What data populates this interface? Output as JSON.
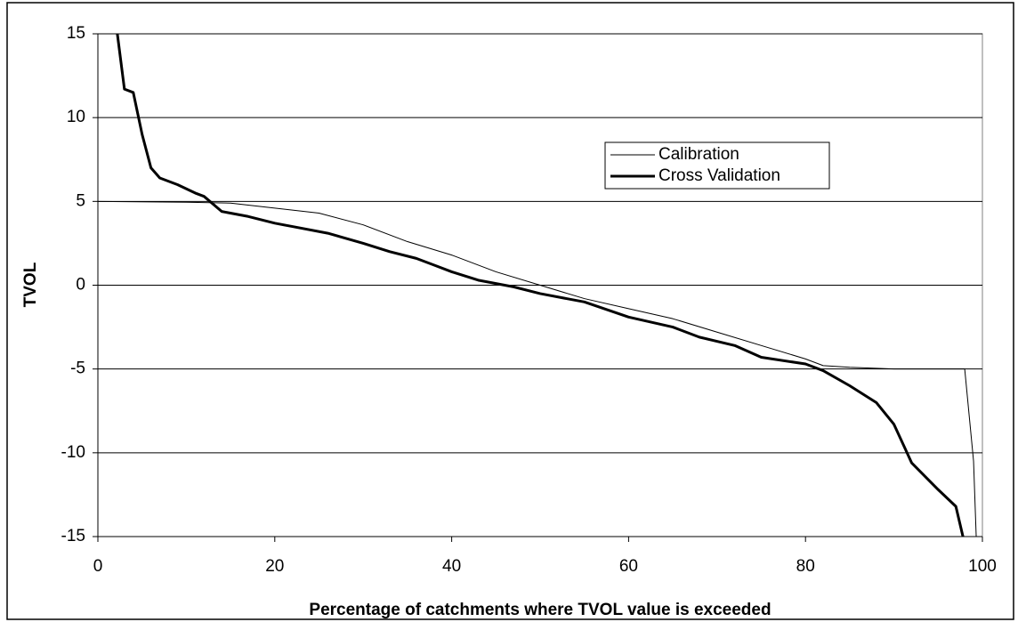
{
  "chart_data": {
    "type": "line",
    "x_label": "Percentage of catchments where TVOL value is exceeded",
    "y_label": "TVOL",
    "xlim": [
      0,
      100
    ],
    "xticks": [
      0,
      20,
      40,
      60,
      80,
      100
    ],
    "ylim": [
      -15,
      15
    ],
    "yticks": [
      -15,
      -10,
      -5,
      0,
      5,
      10,
      15
    ],
    "grid": true,
    "legend": "upper right",
    "series": [
      {
        "name": "Calibration",
        "color": "#000000",
        "line_width": 1,
        "x": [
          0,
          10,
          15,
          20,
          25,
          30,
          35,
          40,
          45,
          50,
          55,
          60,
          65,
          70,
          75,
          80,
          82,
          85,
          90,
          98,
          99,
          99.3
        ],
        "values": [
          5,
          4.95,
          4.9,
          4.6,
          4.3,
          3.6,
          2.6,
          1.8,
          0.8,
          0,
          -0.8,
          -1.4,
          -2,
          -2.8,
          -3.6,
          -4.4,
          -4.8,
          -4.9,
          -5,
          -5,
          -10.5,
          -15
        ]
      },
      {
        "name": "Cross Validation",
        "color": "#000000",
        "line_width": 3,
        "x": [
          2.2,
          3,
          4,
          5,
          6,
          7,
          9,
          11,
          12,
          14,
          17,
          20,
          22,
          26,
          30,
          33,
          36,
          38,
          40,
          43,
          47,
          50,
          55,
          60,
          65,
          68,
          72,
          75,
          80,
          82,
          85,
          88,
          90,
          92,
          95,
          97,
          97.8
        ],
        "values": [
          15,
          11.7,
          11.5,
          9,
          7,
          6.4,
          6,
          5.5,
          5.3,
          4.4,
          4.1,
          3.7,
          3.5,
          3.1,
          2.5,
          2,
          1.6,
          1.2,
          0.8,
          0.3,
          -0.1,
          -0.5,
          -1,
          -1.9,
          -2.5,
          -3.1,
          -3.6,
          -4.3,
          -4.7,
          -5.1,
          -6,
          -7,
          -8.3,
          -10.6,
          -12.2,
          -13.2,
          -15
        ]
      }
    ]
  }
}
